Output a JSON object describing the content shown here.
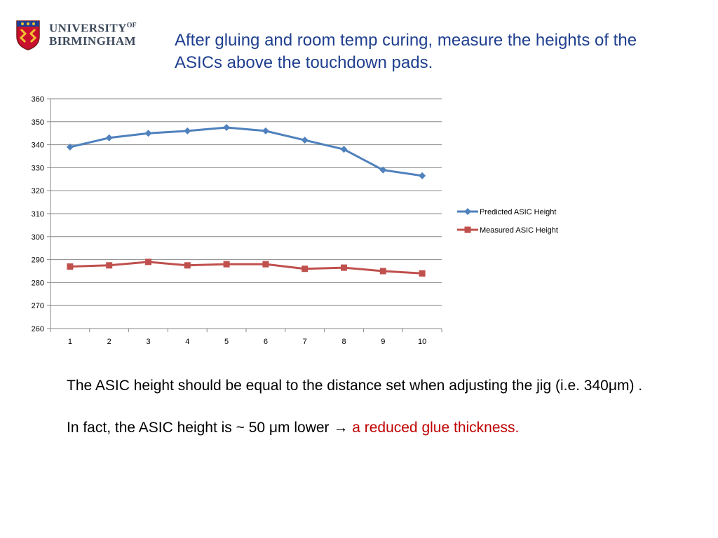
{
  "logo": {
    "line1": "UNIVERSITY",
    "of": "OF",
    "line2": "BIRMINGHAM"
  },
  "headline": "After gluing and room temp curing,  measure  the heights of the ASICs above the touchdown pads.",
  "body": {
    "line1": "The ASIC height should be equal to the distance set when adjusting the jig (i.e.   340μm) .",
    "line2_prefix": "In fact, the ASIC height is ~ 50 μm lower  →  ",
    "line2_highlight": "a reduced glue thickness."
  },
  "colors": {
    "headline": "#1f3f8f",
    "highlight": "#c00000",
    "series1": "#4f81bd",
    "series2": "#c0504d"
  },
  "chart_data": {
    "type": "line",
    "x": [
      1,
      2,
      3,
      4,
      5,
      6,
      7,
      8,
      9,
      10
    ],
    "series": [
      {
        "name": "Predicted ASIC Height",
        "marker": "diamond",
        "color": "#4f81bd",
        "values": [
          339,
          343,
          345,
          346,
          347.5,
          346,
          342,
          338,
          329,
          326.5
        ]
      },
      {
        "name": "Measured ASIC Height",
        "marker": "square",
        "color": "#c0504d",
        "values": [
          287,
          287.5,
          289,
          287.5,
          288,
          288,
          286,
          286.5,
          285,
          284
        ]
      }
    ],
    "ylim": [
      260,
      360
    ],
    "yticks": [
      260,
      270,
      280,
      290,
      300,
      310,
      320,
      330,
      340,
      350,
      360
    ],
    "grid": true,
    "legend": "right"
  }
}
